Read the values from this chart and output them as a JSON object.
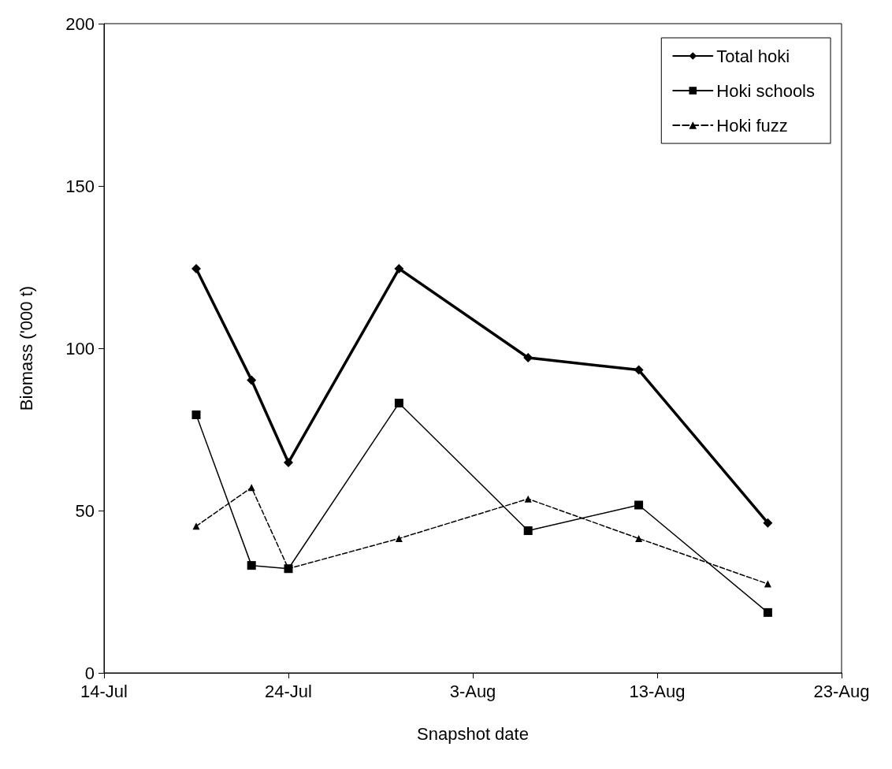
{
  "chart_data": {
    "type": "line",
    "xlabel": "Snapshot date",
    "ylabel": "Biomass ('000 t)",
    "xlim": [
      "--07-14",
      "--08-23"
    ],
    "xticks": [
      {
        "value": "--07-14",
        "label": "14-Jul"
      },
      {
        "value": "--07-24",
        "label": "24-Jul"
      },
      {
        "value": "--08-03",
        "label": "3-Aug"
      },
      {
        "value": "--08-13",
        "label": "13-Aug"
      },
      {
        "value": "--08-23",
        "label": "23-Aug"
      }
    ],
    "ylim": [
      0,
      200
    ],
    "yticks": [
      0,
      50,
      100,
      150,
      200
    ],
    "grid": false,
    "legend": "top right",
    "x": [
      "--07-19",
      "--07-22",
      "--07-24",
      "--07-30",
      "--08-06",
      "--08-12",
      "--08-19"
    ],
    "series": [
      {
        "name": "Total hoki",
        "color": "#000000",
        "marker": "diamond",
        "line_style": "solid",
        "values": [
          124.5,
          90.2,
          64.8,
          124.5,
          97.1,
          93.3,
          46.2
        ]
      },
      {
        "name": "Hoki schools",
        "color": "#000000",
        "marker": "square",
        "line_style": "solid",
        "values": [
          79.5,
          33.1,
          32.1,
          83.1,
          43.8,
          51.7,
          18.6
        ]
      },
      {
        "name": "Hoki fuzz",
        "color": "#000000",
        "marker": "triangle",
        "line_style": "dashed",
        "values": [
          45.2,
          57.1,
          32.1,
          41.4,
          53.6,
          41.4,
          27.4
        ]
      }
    ]
  }
}
